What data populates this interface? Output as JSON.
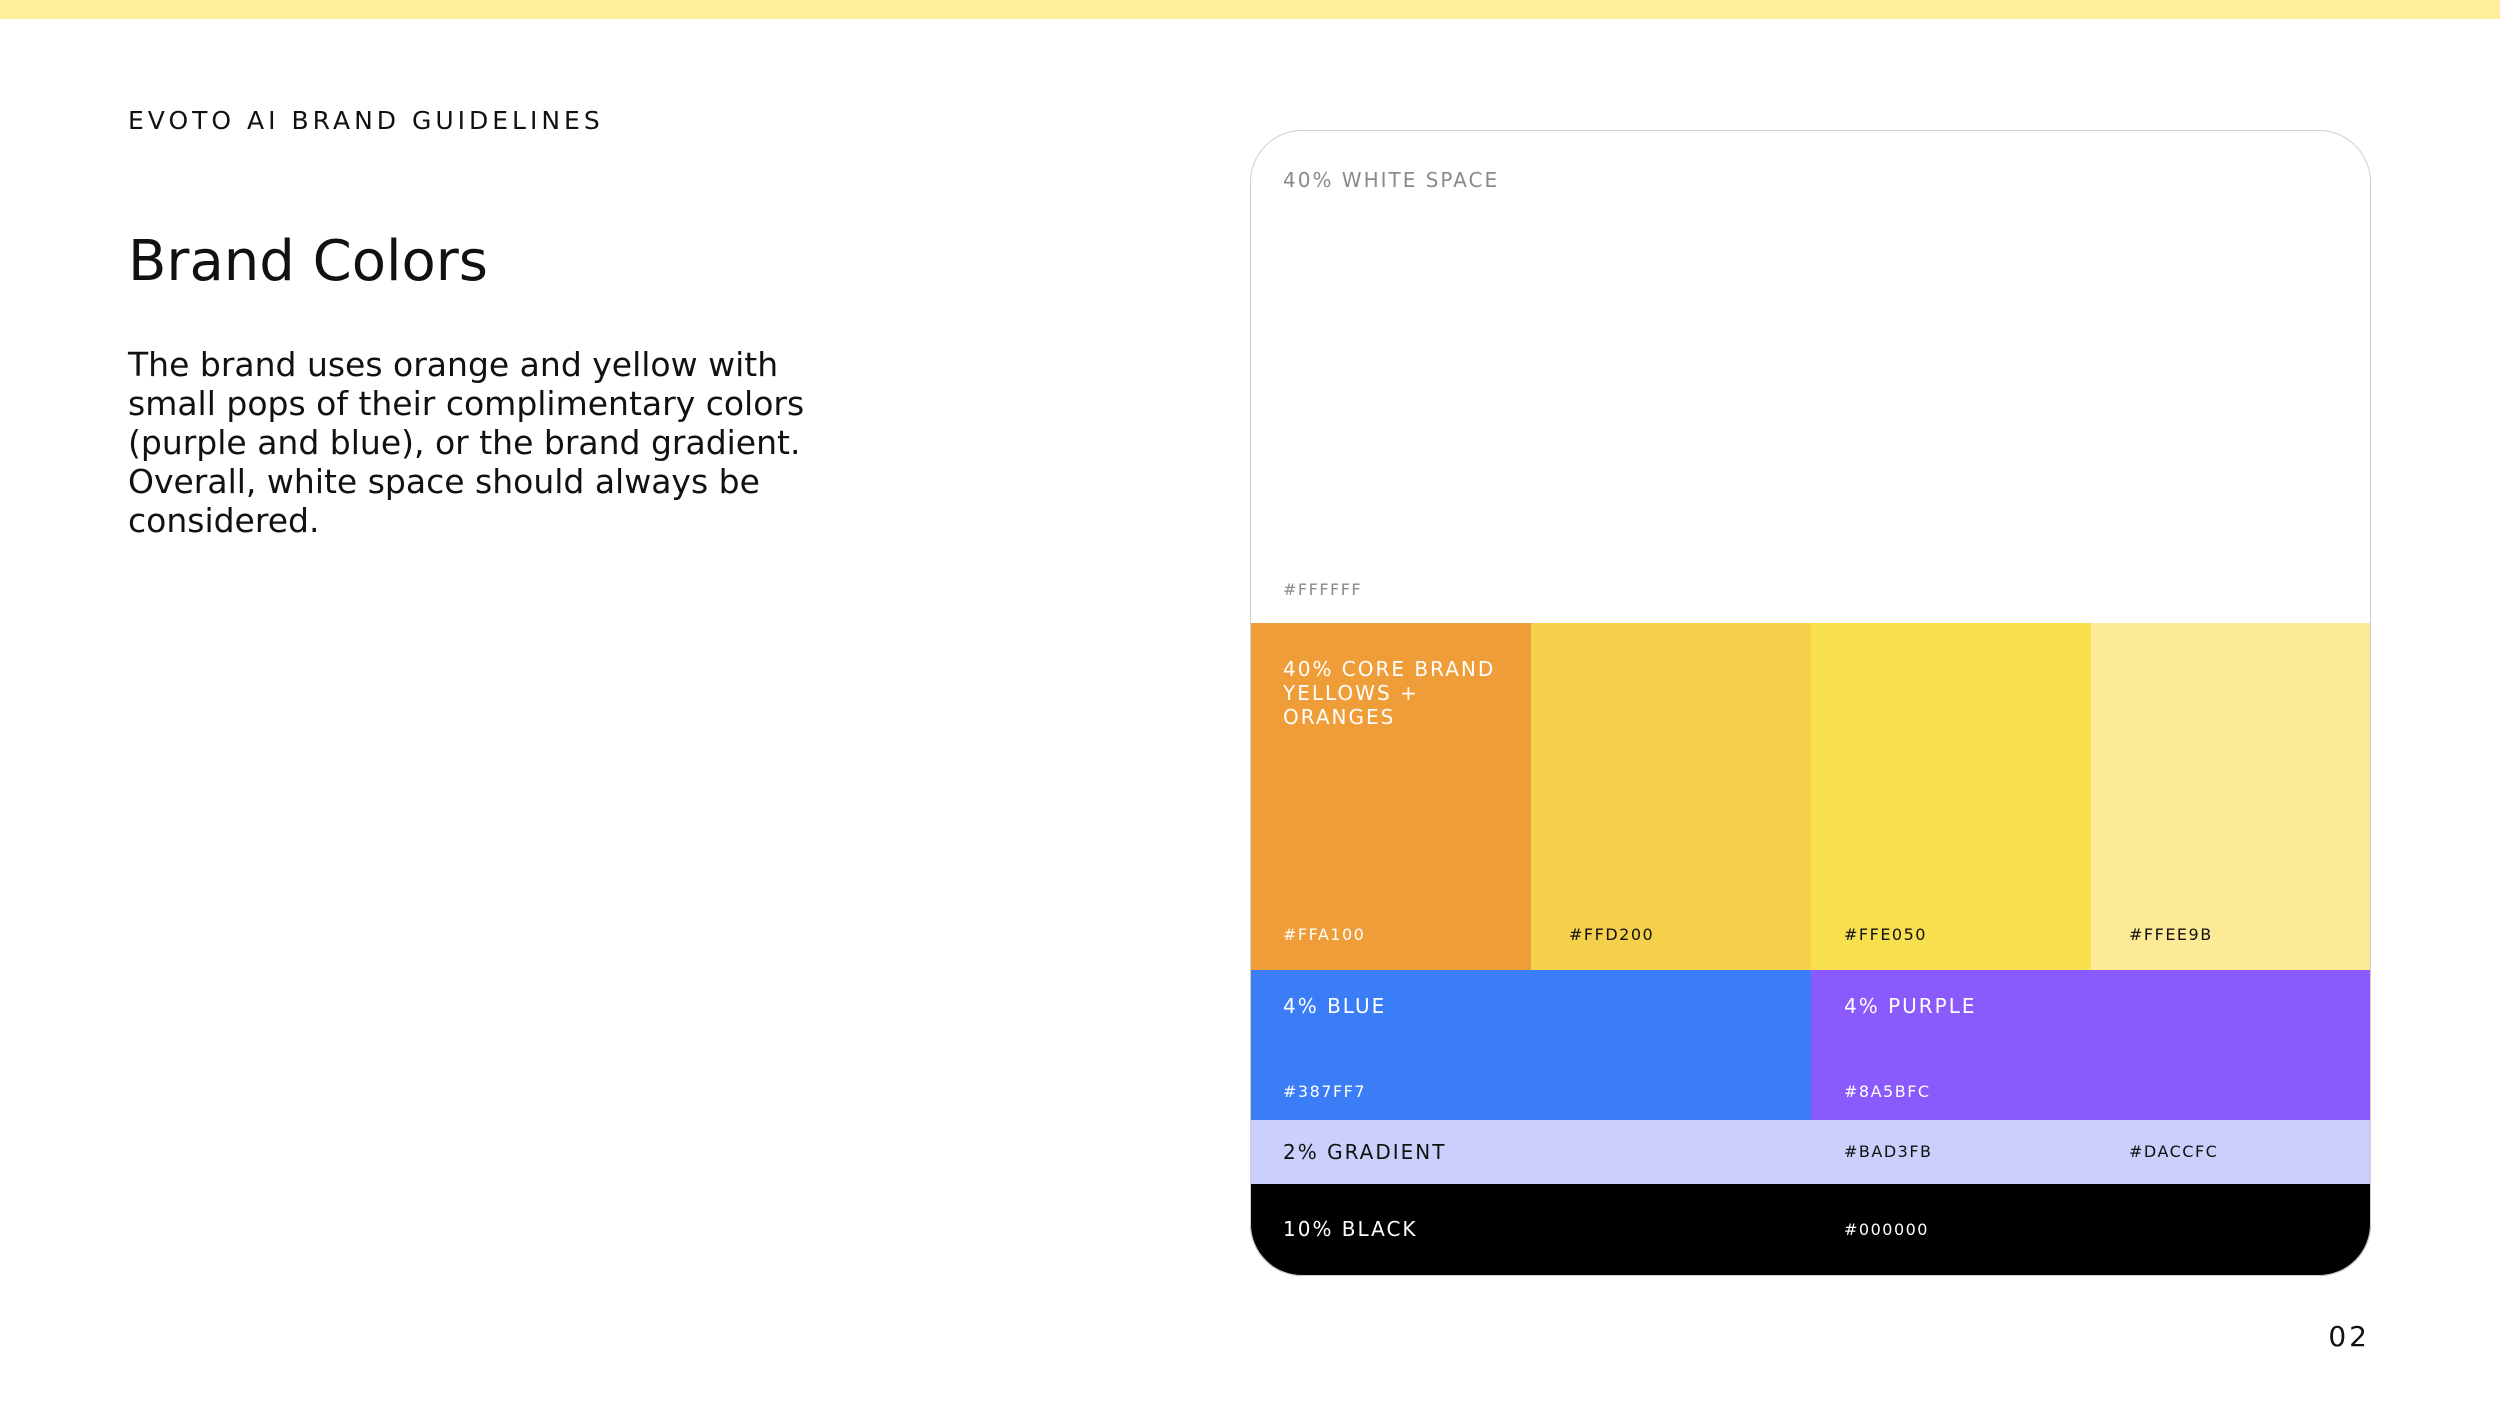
{
  "header": {
    "eyebrow": "EVOTO AI BRAND GUIDELINES",
    "title": "Brand Colors",
    "body": "The brand uses orange and yellow with small pops of their complimentary colors (purple and blue), or the brand gradient. Overall, white space should always be considered."
  },
  "palette": {
    "white": {
      "label": "40% WHITE SPACE",
      "hex": "#FFFFFF"
    },
    "core": {
      "label": "40% CORE BRAND\nYELLOWS + ORANGES",
      "swatches": [
        {
          "hex": "#FFA100"
        },
        {
          "hex": "#FFD200"
        },
        {
          "hex": "#FFE050"
        },
        {
          "hex": "#FFEE9B"
        }
      ]
    },
    "blue": {
      "label": "4% BLUE",
      "hex": "#387FF7"
    },
    "purple": {
      "label": "4% PURPLE",
      "hex": "#8A5BFC"
    },
    "gradient": {
      "label": "2% GRADIENT",
      "hex_start": "#BAD3FB",
      "hex_end": "#DACCFC"
    },
    "black": {
      "label": "10% BLACK",
      "hex": "#000000"
    }
  },
  "footer": {
    "page_number": "02"
  },
  "colors": {
    "top_bar": "#FFEE9B",
    "text": "#111111"
  }
}
